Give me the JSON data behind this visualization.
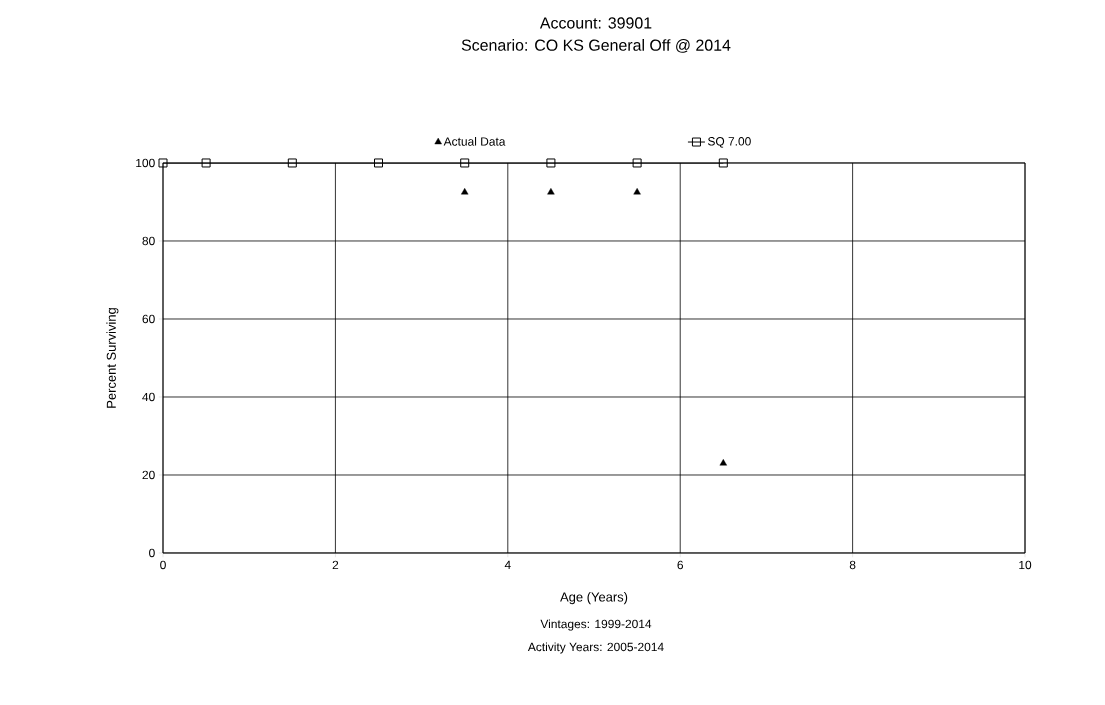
{
  "chart_data": {
    "type": "scatter",
    "title": "Account: 39901",
    "subtitle": "Scenario: CO KS General Off @ 2014",
    "xlabel": "Age (Years)",
    "ylabel": "Percent Surviving",
    "annotations": [
      "Vintages: 1999-2014",
      "Activity Years: 2005-2014"
    ],
    "series": [
      {
        "name": "Actual Data",
        "marker": "triangle",
        "color": "#000000",
        "x": [
          3.5,
          4.5,
          5.5,
          6.5
        ],
        "values": [
          92.5,
          92.5,
          92.5,
          23
        ]
      },
      {
        "name": "SQ 7.00",
        "type": "line",
        "marker": "square",
        "color": "#000000",
        "x": [
          0,
          0.5,
          1.5,
          2.5,
          3.5,
          4.5,
          5.5,
          6.5
        ],
        "values": [
          100,
          100,
          100,
          100,
          100,
          100,
          100,
          100
        ]
      }
    ],
    "xlim": [
      0,
      10
    ],
    "ylim": [
      0,
      100
    ],
    "xticks": [
      0,
      2,
      4,
      6,
      8,
      10
    ],
    "yticks": [
      0,
      20,
      40,
      60,
      80,
      100
    ],
    "grid": true,
    "legend": "top"
  }
}
